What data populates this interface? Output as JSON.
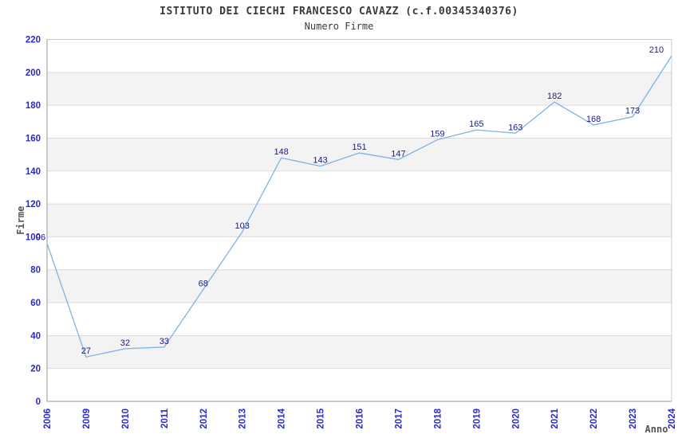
{
  "header": {
    "title": "ISTITUTO DEI CIECHI FRANCESCO CAVAZZ (c.f.00345340376)",
    "subtitle": "Numero Firme"
  },
  "chart_data": {
    "type": "line",
    "categories": [
      "2006",
      "2009",
      "2010",
      "2011",
      "2012",
      "2013",
      "2014",
      "2015",
      "2016",
      "2017",
      "2018",
      "2019",
      "2020",
      "2021",
      "2022",
      "2023",
      "2024"
    ],
    "values": [
      96,
      27,
      32,
      33,
      68,
      103,
      148,
      143,
      151,
      147,
      159,
      165,
      163,
      182,
      168,
      173,
      210
    ],
    "title": "ISTITUTO DEI CIECHI FRANCESCO CAVAZZ (c.f.00345340376)",
    "subtitle": "Numero Firme",
    "xlabel": "Anno",
    "ylabel": "Firme",
    "ylim": [
      0,
      220
    ],
    "ytick_step": 20,
    "grid": "on",
    "legend_position": "none",
    "colors": {
      "line": "#7FB2E6",
      "data_label": "#1A1A8C",
      "tick_label": "#2A2ACC",
      "band_fill": "#F3F3F3",
      "grid_line": "#DCDCDC",
      "plot_border": "#CCCCCC",
      "axis_line": "#999999",
      "title_text": "#3A3A3A",
      "axis_title_text": "#555555",
      "background": "#FFFFFF"
    }
  }
}
